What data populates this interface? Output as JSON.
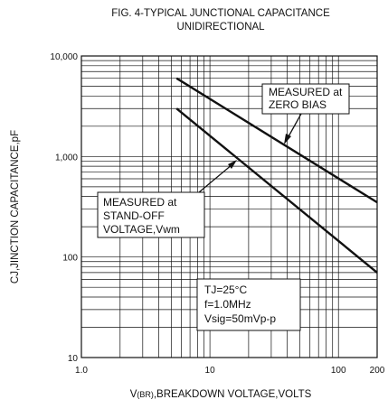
{
  "chart_data": {
    "type": "line",
    "title_line1": "FIG. 4-TYPICAL JUNCTIONAL CAPACITANCE",
    "title_line2": "UNIDIRECTIONAL",
    "xlabel_prefix": "V",
    "xlabel_sub": "(BR)",
    "xlabel_rest": ",BREAKDOWN VOLTAGE,VOLTS",
    "ylabel": "CJ,JINCTION CAPACITANCE,pF",
    "x_scale": "log",
    "y_scale": "log",
    "xlim": [
      1,
      200
    ],
    "ylim": [
      10,
      10000
    ],
    "grid": true,
    "x_ticks": [
      {
        "value": 1,
        "label": "1.0"
      },
      {
        "value": 10,
        "label": "10"
      },
      {
        "value": 100,
        "label": "100"
      },
      {
        "value": 200,
        "label": "200"
      }
    ],
    "y_ticks": [
      {
        "value": 10,
        "label": "10"
      },
      {
        "value": 100,
        "label": "100"
      },
      {
        "value": 1000,
        "label": "1,000"
      },
      {
        "value": 10000,
        "label": "10,000"
      }
    ],
    "series": [
      {
        "x": [
          5.5,
          200
        ],
        "y": [
          6000,
          350
        ]
      },
      {
        "x": [
          5.5,
          200
        ],
        "y": [
          3000,
          70
        ]
      }
    ],
    "annotations": {
      "zero_bias": [
        "MEASURED at",
        "ZERO BIAS"
      ],
      "standoff": [
        "MEASURED at",
        "STAND-OFF",
        "VOLTAGE,Vwm"
      ],
      "conditions": [
        "TJ=25°C",
        "f=1.0MHz",
        "Vsig=50mVp-p"
      ]
    }
  }
}
